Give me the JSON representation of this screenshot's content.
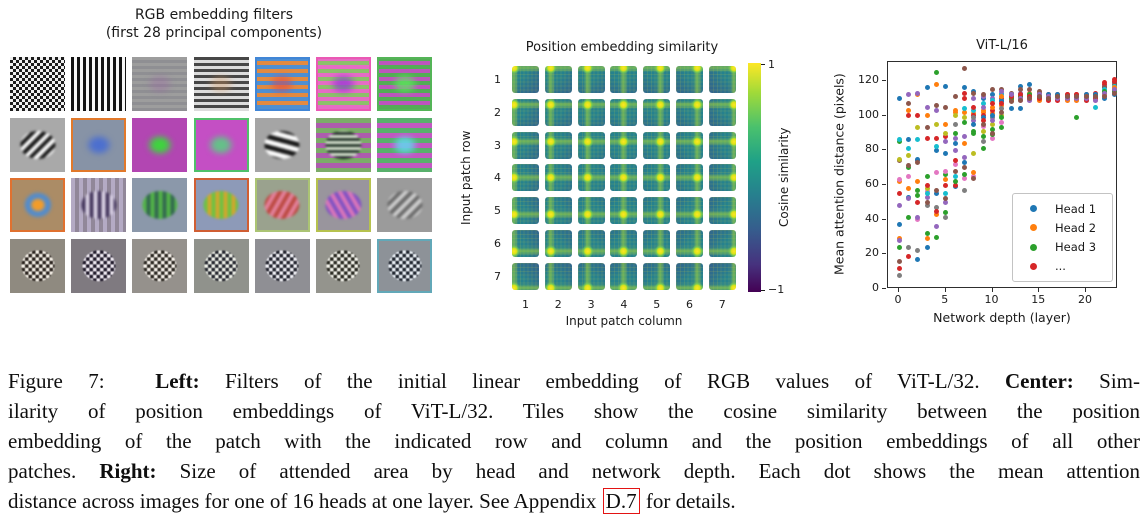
{
  "left_panel": {
    "title_line1": "RGB embedding filters",
    "title_line2": "(first 28 principal components)",
    "filters": [
      {
        "p": "checker",
        "c1": "#1c1c1c",
        "c2": "#efefef",
        "px": 3
      },
      {
        "p": "vstripes",
        "c1": "#121212",
        "c2": "#f7f7f7",
        "px": 3
      },
      {
        "p": "hstripes",
        "c1": "#9d9d9d",
        "c2": "#8f8f93",
        "px": 3,
        "blob": {
          "type": "solid",
          "c1": "rgba(155,95,165,0.30)"
        }
      },
      {
        "p": "hstripes",
        "c1": "#474747",
        "c2": "#dcdcdc",
        "px": 3,
        "blob": {
          "type": "solid",
          "c1": "rgba(215,150,90,0.35)"
        }
      },
      {
        "p": "hstripes",
        "c1": "#4e8fd2",
        "c2": "#e28a40",
        "px": 4,
        "edge": "#4186d6",
        "blob": {
          "type": "solid",
          "c1": "rgba(225,70,70,0.55)"
        }
      },
      {
        "p": "hstripes",
        "c1": "#e56cc5",
        "c2": "#8cc06a",
        "px": 4,
        "edge": "#ea59b4",
        "blob": {
          "type": "solid",
          "c1": "rgba(140,50,215,0.65)"
        }
      },
      {
        "p": "hstripes",
        "c1": "#53ad55",
        "c2": "#bd54bd",
        "px": 4,
        "edge": "#54b457",
        "blob": {
          "type": "solid",
          "c1": "rgba(95,230,95,0.75)"
        }
      },
      {
        "p": "plain",
        "c1": "#a9a9a9",
        "blob": {
          "type": "stripes",
          "c1": "#161616",
          "c2": "#fbfbfb",
          "rot": 135,
          "px": 4
        }
      },
      {
        "p": "plain",
        "c1": "#8793a6",
        "edge": "#e1792b",
        "blob": {
          "type": "solid",
          "c1": "rgba(66,105,214,0.85)"
        }
      },
      {
        "p": "plain",
        "c1": "#b246b2",
        "blob": {
          "type": "solid",
          "c1": "#3ed43e"
        }
      },
      {
        "p": "plain",
        "c1": "#c44fc4",
        "edge": "#4fc06a",
        "blob": {
          "type": "solid",
          "c1": "rgba(90,205,130,0.9)"
        }
      },
      {
        "p": "plain",
        "c1": "#a5a5a5",
        "blob": {
          "type": "stripes",
          "c1": "#181818",
          "c2": "#fdfdfd",
          "rot": 15,
          "px": 5
        }
      },
      {
        "p": "hstripes",
        "c1": "#7cab68",
        "c2": "#ad5cad",
        "px": 5,
        "blob": {
          "type": "stripes",
          "c1": "#16281c",
          "c2": "#e8f2e0",
          "rot": 0,
          "px": 3
        }
      },
      {
        "p": "hstripes",
        "c1": "#58b06c",
        "c2": "#c158c1",
        "px": 5,
        "blob": {
          "type": "solid",
          "c1": "rgba(100,210,235,0.9)"
        }
      },
      {
        "p": "plain",
        "c1": "#ab8c66",
        "edge": "#e0712f",
        "blob": {
          "type": "rings",
          "c1": "#f39c2a",
          "c2": "rgba(72,140,216,0.9)"
        }
      },
      {
        "p": "vstripes",
        "c1": "#b4aac4",
        "c2": "#918799",
        "px": 4,
        "blob": {
          "type": "stripes",
          "c1": "#41335a",
          "c2": "#ded6e8",
          "rot": 90,
          "px": 4
        }
      },
      {
        "p": "plain",
        "c1": "#8b98aa",
        "blob": {
          "type": "stripes",
          "c1": "#54b548",
          "c2": "#33684f",
          "rot": 90,
          "px": 4
        }
      },
      {
        "p": "plain",
        "c1": "#8d9ab8",
        "edge": "#d05e33",
        "blob": {
          "type": "stripes",
          "c1": "#6cc244",
          "c2": "#d2a62e",
          "rot": 90,
          "px": 4
        }
      },
      {
        "p": "plain",
        "c1": "#9aa28e",
        "edge": "#abc474",
        "blob": {
          "type": "stripes",
          "c1": "#e2809a",
          "c2": "#bc4a42",
          "rot": 120,
          "px": 4
        }
      },
      {
        "p": "plain",
        "c1": "#99959d",
        "edge": "#b6c24e",
        "blob": {
          "type": "stripes",
          "c1": "#da76ba",
          "c2": "#8052c2",
          "rot": 60,
          "px": 4
        }
      },
      {
        "p": "plain",
        "c1": "#9b9b9b",
        "blob": {
          "type": "stripes",
          "c1": "#6a6a6a",
          "c2": "#cecece",
          "rot": 135,
          "px": 4
        }
      },
      {
        "p": "plain",
        "c1": "#8f8a80",
        "blob": {
          "type": "speckle",
          "c1": "#2a231e",
          "c2": "#f4efe6"
        }
      },
      {
        "p": "plain",
        "c1": "#7f7a80",
        "blob": {
          "type": "speckle",
          "c1": "#201a2a",
          "c2": "#f1ecf4"
        }
      },
      {
        "p": "plain",
        "c1": "#95918c",
        "blob": {
          "type": "speckle",
          "c1": "#2c2822",
          "c2": "#f6f1ea"
        }
      },
      {
        "p": "plain",
        "c1": "#90928c",
        "blob": {
          "type": "speckle",
          "c1": "#262830",
          "c2": "#eef0e8"
        }
      },
      {
        "p": "plain",
        "c1": "#8f8f94",
        "blob": {
          "type": "speckle",
          "c1": "#23242e",
          "c2": "#f0f0f6"
        }
      },
      {
        "p": "plain",
        "c1": "#94948d",
        "blob": {
          "type": "speckle",
          "c1": "#2a2a22",
          "c2": "#f2f2ea"
        }
      },
      {
        "p": "plain",
        "c1": "#8d9298",
        "edge": "#62a8b8",
        "blob": {
          "type": "speckle",
          "c1": "#202630",
          "c2": "#eaf0f6"
        }
      }
    ]
  },
  "chart_data": [
    {
      "type": "heatmap",
      "title": "Position embedding similarity",
      "xlabel": "Input patch column",
      "ylabel": "Input patch row",
      "rows": [
        "1",
        "2",
        "3",
        "4",
        "5",
        "6",
        "7"
      ],
      "cols": [
        "1",
        "2",
        "3",
        "4",
        "5",
        "6",
        "7"
      ],
      "grid": "7x7 tiles; each tile (r,c) shows the cosine similarity of that patch's position embedding with all other patches, peaking (yellow) at its own row/column with bright bands along the same row and column",
      "colormap": "viridis",
      "value_range": [
        -1,
        1
      ],
      "colorbar": {
        "label": "Cosine similarity",
        "top": "1",
        "bottom": "−1"
      }
    },
    {
      "type": "scatter",
      "title": "ViT-L/16",
      "xlabel": "Network depth (layer)",
      "ylabel": "Mean attention distance (pixels)",
      "xlim": [
        -1.2,
        24.2
      ],
      "ylim": [
        0,
        131
      ],
      "xticks": [
        0,
        5,
        10,
        15,
        20
      ],
      "yticks": [
        0,
        20,
        40,
        60,
        80,
        100,
        120
      ],
      "legend": [
        {
          "label": "Head 1",
          "color": "#1f77b4"
        },
        {
          "label": "Head 2",
          "color": "#ff7f0e"
        },
        {
          "label": "Head 3",
          "color": "#2ca02c"
        },
        {
          "label": "...",
          "color": "#d62728"
        }
      ],
      "head_color_cycle": [
        "#1f77b4",
        "#ff7f0e",
        "#2ca02c",
        "#d62728",
        "#9467bd",
        "#8c564b",
        "#e377c2",
        "#7f7f7f",
        "#bcbd22",
        "#17becf"
      ],
      "layers": [
        0,
        1,
        2,
        3,
        4,
        5,
        6,
        7,
        8,
        9,
        10,
        11,
        12,
        13,
        14,
        15,
        16,
        17,
        18,
        19,
        20,
        21,
        22,
        23
      ],
      "points_by_layer": [
        [
          110,
          62,
          85,
          55,
          48,
          74,
          63,
          8,
          75,
          86,
          37,
          29,
          24,
          12,
          28,
          16
        ],
        [
          86,
          103,
          70,
          19,
          112,
          71,
          65,
          24,
          77,
          81,
          53,
          58,
          41,
          100,
          52,
          107
        ],
        [
          17,
          112,
          54,
          100,
          113,
          74,
          40,
          22,
          93,
          86,
          75,
          62,
          57,
          50,
          41,
          73
        ],
        [
          116,
          100,
          65,
          87,
          53,
          93,
          56,
          48,
          58,
          55,
          24,
          29,
          32,
          60,
          105,
          50
        ],
        [
          80,
          118,
          125,
          87,
          36,
          106,
          67,
          47,
          95,
          82,
          55,
          43,
          30,
          45,
          103,
          57
        ],
        [
          78,
          95,
          66,
          88,
          50,
          105,
          68,
          41,
          90,
          55,
          117,
          63,
          44,
          60,
          85,
          52
        ],
        [
          59,
          102,
          90,
          60,
          87,
          111,
          72,
          95,
          100,
          65,
          84,
          103,
          62,
          74,
          80,
          68
        ],
        [
          116,
          102,
          96,
          113,
          88,
          127,
          64,
          57,
          99,
          104,
          73,
          84,
          66,
          110,
          76,
          70
        ],
        [
          114,
          101,
          91,
          100,
          97,
          113,
          65,
          99,
          78,
          103,
          95,
          67,
          90,
          105,
          110,
          64
        ],
        [
          110,
          102,
          88,
          100,
          111,
          112,
          94,
          85,
          91,
          107,
          99,
          103,
          81,
          97,
          105,
          95
        ],
        [
          112,
          101,
          92,
          103,
          110,
          115,
          87,
          99,
          95,
          109,
          100,
          105,
          89,
          107,
          97,
          90
        ],
        [
          108,
          106,
          93,
          110,
          113,
          115,
          96,
          104,
          100,
          112,
          109,
          111,
          99,
          107,
          114,
          102
        ],
        [
          104,
          110,
          109,
          111,
          112,
          113,
          109,
          110,
          111,
          112,
          110,
          109,
          110,
          111,
          112,
          108
        ],
        [
          117,
          112,
          110,
          111,
          113,
          115,
          109,
          110,
          111,
          112,
          104,
          110,
          111,
          112,
          110,
          109
        ],
        [
          118,
          113,
          111,
          110,
          112,
          115,
          109,
          111,
          110,
          112,
          111,
          110,
          112,
          111,
          109,
          110
        ],
        [
          112,
          111,
          110,
          113,
          111,
          114,
          109,
          110,
          111,
          112,
          110,
          109,
          111,
          110,
          112,
          111
        ],
        [
          111,
          110,
          111,
          112,
          110,
          111,
          109,
          110,
          111,
          110,
          112,
          111,
          110,
          109,
          111,
          110
        ],
        [
          111,
          110,
          111,
          112,
          110,
          111,
          109,
          110,
          110,
          111,
          112,
          110,
          111,
          109,
          110,
          111
        ],
        [
          110,
          111,
          110,
          112,
          111,
          110,
          109,
          111,
          110,
          111,
          110,
          109,
          111,
          112,
          110,
          111
        ],
        [
          110,
          111,
          110,
          112,
          111,
          110,
          109,
          111,
          110,
          111,
          110,
          109,
          99,
          112,
          110,
          111
        ],
        [
          111,
          110,
          111,
          112,
          110,
          111,
          110,
          109,
          111,
          110,
          112,
          111,
          110,
          109,
          110,
          111
        ],
        [
          112,
          111,
          110,
          113,
          111,
          110,
          109,
          110,
          111,
          105,
          112,
          110,
          111,
          110,
          109,
          111
        ],
        [
          117,
          113,
          112,
          118,
          114,
          116,
          111,
          112,
          113,
          115,
          110,
          112,
          114,
          119,
          113,
          111
        ],
        [
          119,
          115,
          114,
          121,
          116,
          118,
          113,
          114,
          115,
          117,
          112,
          116,
          114,
          120,
          115,
          113
        ]
      ]
    }
  ],
  "caption": {
    "lines": [
      [
        {
          "t": "Figure 7:  "
        },
        {
          "t": "Left:",
          "b": true
        },
        {
          "t": " Filters of the initial linear embedding of RGB values of ViT-L/32. "
        },
        {
          "t": "Center:",
          "b": true
        },
        {
          "t": " Sim-"
        }
      ],
      [
        {
          "t": "ilarity of position embeddings of ViT-L/32. Tiles show the cosine similarity between the position"
        }
      ],
      [
        {
          "t": "embedding of the patch with the indicated row and column and the position embeddings of all other"
        }
      ],
      [
        {
          "t": "patches. "
        },
        {
          "t": "Right:",
          "b": true
        },
        {
          "t": " Size of attended area by head and network depth. Each dot shows the mean attention"
        }
      ],
      [
        {
          "t": "distance across images for one of 16 heads at one layer. See Appendix "
        },
        {
          "t": "D.7",
          "link": true
        },
        {
          "t": " for details."
        }
      ]
    ]
  }
}
